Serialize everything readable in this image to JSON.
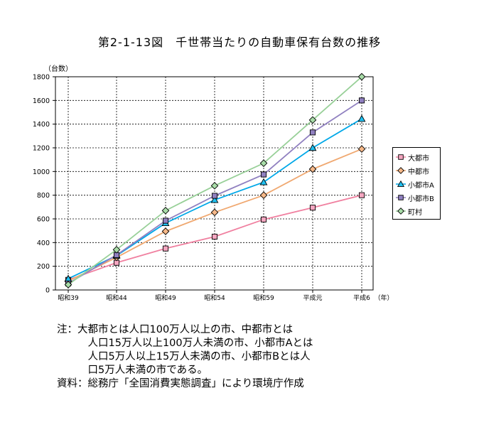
{
  "title": "第2-1-13図　千世帯当たりの自動車保有台数の推移",
  "notes": [
    "注：大都市とは人口100万人以上の市、中都市とは",
    "　　　人口15万人以上100万人未満の市、小都市Aとは",
    "　　　人口5万人以上15万人未満の市、小都市Bとは人",
    "　　　口5万人未満の市である。",
    "資料：総務庁「全国消費実態調査」により環境庁作成"
  ],
  "chart_data": {
    "type": "line",
    "ylabel": "（台数）",
    "xlabel": "（年）",
    "categories": [
      "昭和39",
      "昭和44",
      "昭和49",
      "昭和54",
      "昭和59",
      "平成元",
      "平成6"
    ],
    "ylim": [
      0,
      1800
    ],
    "yticks": [
      0,
      200,
      400,
      600,
      800,
      1000,
      1200,
      1400,
      1600,
      1800
    ],
    "grid": true,
    "legend_position": "right",
    "series": [
      {
        "name": "大都市",
        "color": "#f080a0",
        "fill": "#f4a6c0",
        "marker": "square",
        "values": [
          85,
          230,
          350,
          450,
          595,
          695,
          800
        ]
      },
      {
        "name": "中都市",
        "color": "#f0a870",
        "fill": "#f6b888",
        "marker": "diamond",
        "values": [
          75,
          275,
          495,
          655,
          800,
          1020,
          1190
        ]
      },
      {
        "name": "小都市A",
        "color": "#00a8e8",
        "fill": "#20c0f0",
        "marker": "triangle",
        "values": [
          95,
          290,
          565,
          760,
          910,
          1200,
          1445
        ]
      },
      {
        "name": "小都市B",
        "color": "#9080c0",
        "fill": "#9080c0",
        "marker": "square",
        "values": [
          55,
          295,
          585,
          795,
          975,
          1330,
          1600
        ]
      },
      {
        "name": "町村",
        "color": "#98d098",
        "fill": "#a8dca8",
        "marker": "diamond",
        "values": [
          45,
          340,
          670,
          880,
          1070,
          1435,
          1800
        ]
      }
    ]
  }
}
